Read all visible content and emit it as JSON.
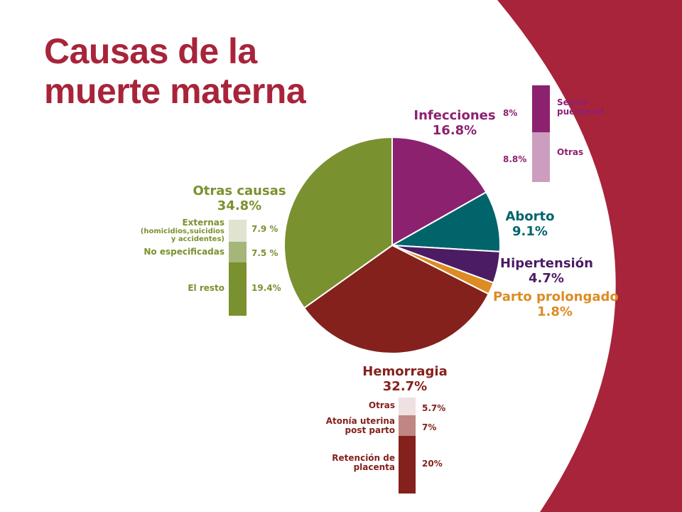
{
  "title": {
    "line1": "Causas de la",
    "line2": "muerte materna"
  },
  "colors": {
    "accent": "#a8243a",
    "infecciones": "#8c2170",
    "aborto": "#00646a",
    "hipertension": "#4b1c63",
    "parto": "#dc8c23",
    "hemorragia": "#84211c",
    "otras": "#7a912f"
  },
  "chart_data": [
    {
      "type": "pie",
      "title": "Causas de la muerte materna",
      "slices": [
        {
          "label": "Infecciones",
          "value": 16.8,
          "display": "16.8%",
          "color": "#8c2170"
        },
        {
          "label": "Aborto",
          "value": 9.1,
          "display": "9.1%",
          "color": "#00646a"
        },
        {
          "label": "Hipertensión",
          "value": 4.7,
          "display": "4.7%",
          "color": "#4b1c63"
        },
        {
          "label": "Parto prolongado",
          "value": 1.8,
          "display": "1.8%",
          "color": "#dc8c23"
        },
        {
          "label": "Hemorragia",
          "value": 32.7,
          "display": "32.7%",
          "color": "#84211c"
        },
        {
          "label": "Otras causas",
          "value": 34.8,
          "display": "34.8%",
          "color": "#7a912f"
        }
      ]
    },
    {
      "type": "bar",
      "stacked": true,
      "parent": "Infecciones",
      "segments": [
        {
          "label": "Sepsis puerperal",
          "value": 8,
          "display": "8%",
          "color": "#8c2170"
        },
        {
          "label": "Otras",
          "value": 8.8,
          "display": "8.8%",
          "color": "#cc9dbf"
        }
      ]
    },
    {
      "type": "bar",
      "stacked": true,
      "parent": "Otras causas",
      "segments": [
        {
          "label": "Externas",
          "sublabel": "(homicidios,suicidios y accidentes)",
          "value": 7.9,
          "display": "7.9 %",
          "color": "#dfe3cf"
        },
        {
          "label": "No especificadas",
          "value": 7.5,
          "display": "7.5 %",
          "color": "#a6b57a"
        },
        {
          "label": "El resto",
          "value": 19.4,
          "display": "19.4%",
          "color": "#7a912f"
        }
      ]
    },
    {
      "type": "bar",
      "stacked": true,
      "parent": "Hemorragia",
      "segments": [
        {
          "label": "Otras",
          "value": 5.7,
          "display": "5.7%",
          "color": "#efe1e1"
        },
        {
          "label": "Atonía uterina post parto",
          "value": 7,
          "display": "7%",
          "color": "#c08683"
        },
        {
          "label": "Retención de placenta",
          "value": 20,
          "display": "20%",
          "color": "#84211c"
        }
      ]
    }
  ]
}
